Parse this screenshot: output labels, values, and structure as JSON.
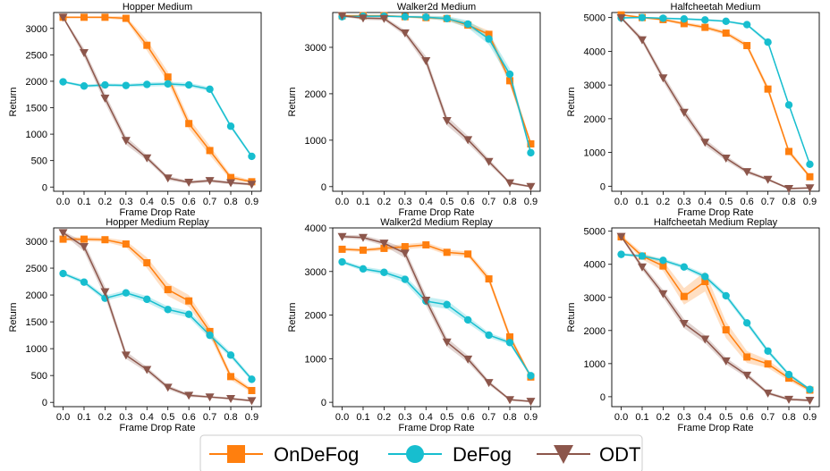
{
  "legend": {
    "entries": [
      {
        "name": "OnDeFog",
        "color": "#ff7f0e",
        "marker": "square"
      },
      {
        "name": "DeFog",
        "color": "#17becf",
        "marker": "circle"
      },
      {
        "name": "ODT",
        "color": "#8c564b",
        "marker": "triangle-down"
      }
    ]
  },
  "chart_data": [
    {
      "type": "line",
      "title": "Hopper Medium",
      "xlabel": "Frame Drop Rate",
      "ylabel": "Return",
      "x": [
        0.0,
        0.1,
        0.2,
        0.3,
        0.4,
        0.5,
        0.6,
        0.7,
        0.8,
        0.9
      ],
      "x_ticks": [
        "0.0",
        "0.1",
        "0.2",
        "0.3",
        "0.4",
        "0.5",
        "0.6",
        "0.7",
        "0.8",
        "0.9"
      ],
      "ylim": [
        -80,
        3300
      ],
      "y_ticks": [
        0,
        500,
        1000,
        1500,
        2000,
        2500,
        3000
      ],
      "series": [
        {
          "name": "OnDeFog",
          "values": [
            3210,
            3210,
            3210,
            3190,
            2680,
            2080,
            1200,
            690,
            180,
            100
          ],
          "band": [
            20,
            20,
            20,
            40,
            100,
            100,
            100,
            90,
            50,
            30
          ]
        },
        {
          "name": "DeFog",
          "values": [
            1990,
            1910,
            1930,
            1920,
            1940,
            1950,
            1930,
            1850,
            1150,
            580
          ],
          "band": [
            20,
            30,
            30,
            30,
            40,
            40,
            40,
            40,
            40,
            30
          ]
        },
        {
          "name": "ODT",
          "values": [
            3210,
            2540,
            1680,
            880,
            550,
            170,
            90,
            120,
            80,
            50
          ],
          "band": [
            20,
            80,
            90,
            80,
            50,
            40,
            30,
            30,
            30,
            20
          ]
        }
      ]
    },
    {
      "type": "line",
      "title": "Walker2d Medium",
      "xlabel": "Frame Drop Rate",
      "ylabel": "Return",
      "x": [
        0.0,
        0.1,
        0.2,
        0.3,
        0.4,
        0.5,
        0.6,
        0.7,
        0.8,
        0.9
      ],
      "x_ticks": [
        "0.0",
        "0.1",
        "0.2",
        "0.3",
        "0.4",
        "0.5",
        "0.6",
        "0.7",
        "0.8",
        "0.9"
      ],
      "ylim": [
        -100,
        3750
      ],
      "y_ticks": [
        0,
        1000,
        2000,
        3000
      ],
      "series": [
        {
          "name": "OnDeFog",
          "values": [
            3680,
            3680,
            3680,
            3660,
            3640,
            3620,
            3480,
            3280,
            2280,
            920
          ],
          "band": [
            20,
            20,
            20,
            20,
            30,
            40,
            60,
            80,
            100,
            60
          ]
        },
        {
          "name": "DeFog",
          "values": [
            3660,
            3670,
            3670,
            3660,
            3650,
            3620,
            3500,
            3180,
            2420,
            730
          ],
          "band": [
            20,
            20,
            20,
            20,
            30,
            50,
            80,
            120,
            120,
            60
          ]
        },
        {
          "name": "ODT",
          "values": [
            3680,
            3630,
            3620,
            3310,
            2710,
            1420,
            1010,
            540,
            80,
            0
          ],
          "band": [
            20,
            40,
            40,
            60,
            100,
            100,
            80,
            60,
            30,
            20
          ]
        }
      ]
    },
    {
      "type": "line",
      "title": "Halfcheetah Medium",
      "xlabel": "Frame Drop Rate",
      "ylabel": "Return",
      "x": [
        0.0,
        0.1,
        0.2,
        0.3,
        0.4,
        0.5,
        0.6,
        0.7,
        0.8,
        0.9
      ],
      "x_ticks": [
        "0.0",
        "0.1",
        "0.2",
        "0.3",
        "0.4",
        "0.5",
        "0.6",
        "0.7",
        "0.8",
        "0.9"
      ],
      "ylim": [
        -150,
        5150
      ],
      "y_ticks": [
        0,
        1000,
        2000,
        3000,
        4000,
        5000
      ],
      "series": [
        {
          "name": "OnDeFog",
          "values": [
            5080,
            5000,
            4940,
            4820,
            4710,
            4540,
            4170,
            2880,
            1030,
            280
          ],
          "band": [
            30,
            30,
            40,
            50,
            60,
            60,
            80,
            100,
            80,
            50
          ]
        },
        {
          "name": "DeFog",
          "values": [
            4990,
            5000,
            4980,
            4960,
            4930,
            4890,
            4790,
            4270,
            2410,
            650
          ],
          "band": [
            20,
            20,
            20,
            30,
            30,
            30,
            40,
            60,
            60,
            40
          ]
        },
        {
          "name": "ODT",
          "values": [
            4990,
            4340,
            3210,
            2190,
            1300,
            830,
            430,
            200,
            -70,
            -50
          ],
          "band": [
            40,
            80,
            110,
            120,
            100,
            80,
            60,
            40,
            30,
            30
          ]
        }
      ]
    },
    {
      "type": "line",
      "title": "Hopper Medium Replay",
      "xlabel": "Frame Drop Rate",
      "ylabel": "Return",
      "x": [
        0.0,
        0.1,
        0.2,
        0.3,
        0.4,
        0.5,
        0.6,
        0.7,
        0.8,
        0.9
      ],
      "x_ticks": [
        "0.0",
        "0.1",
        "0.2",
        "0.3",
        "0.4",
        "0.5",
        "0.6",
        "0.7",
        "0.8",
        "0.9"
      ],
      "ylim": [
        -80,
        3250
      ],
      "y_ticks": [
        0,
        500,
        1000,
        1500,
        2000,
        2500,
        3000
      ],
      "series": [
        {
          "name": "OnDeFog",
          "values": [
            3040,
            3040,
            3030,
            2950,
            2600,
            2100,
            1890,
            1320,
            480,
            220
          ],
          "band": [
            30,
            40,
            40,
            60,
            100,
            120,
            110,
            90,
            60,
            40
          ]
        },
        {
          "name": "DeFog",
          "values": [
            2400,
            2240,
            1940,
            2040,
            1920,
            1730,
            1640,
            1250,
            880,
            430
          ],
          "band": [
            30,
            40,
            50,
            50,
            60,
            60,
            60,
            60,
            50,
            40
          ]
        },
        {
          "name": "ODT",
          "values": [
            3160,
            2900,
            2060,
            880,
            610,
            280,
            130,
            100,
            70,
            30
          ],
          "band": [
            30,
            90,
            100,
            70,
            50,
            40,
            30,
            20,
            20,
            20
          ]
        }
      ]
    },
    {
      "type": "line",
      "title": "Walker2d Medium Replay",
      "xlabel": "Frame Drop Rate",
      "ylabel": "Return",
      "x": [
        0.0,
        0.1,
        0.2,
        0.3,
        0.4,
        0.5,
        0.6,
        0.7,
        0.8,
        0.9
      ],
      "x_ticks": [
        "0.0",
        "0.1",
        "0.2",
        "0.3",
        "0.4",
        "0.5",
        "0.6",
        "0.7",
        "0.8",
        "0.9"
      ],
      "ylim": [
        -100,
        4000
      ],
      "y_ticks": [
        0,
        1000,
        2000,
        3000,
        4000
      ],
      "series": [
        {
          "name": "OnDeFog",
          "values": [
            3510,
            3490,
            3530,
            3570,
            3610,
            3440,
            3400,
            2830,
            1500,
            580
          ],
          "band": [
            40,
            40,
            50,
            60,
            60,
            60,
            60,
            80,
            80,
            50
          ]
        },
        {
          "name": "DeFog",
          "values": [
            3220,
            3060,
            2980,
            2820,
            2320,
            2240,
            1890,
            1540,
            1370,
            610
          ],
          "band": [
            40,
            50,
            60,
            80,
            100,
            100,
            80,
            60,
            50,
            40
          ]
        },
        {
          "name": "ODT",
          "values": [
            3800,
            3780,
            3650,
            3420,
            2340,
            1380,
            990,
            450,
            60,
            20
          ],
          "band": [
            40,
            50,
            60,
            110,
            120,
            100,
            80,
            50,
            30,
            20
          ]
        }
      ]
    },
    {
      "type": "line",
      "title": "Halfcheetah Medium Replay",
      "xlabel": "Frame Drop Rate",
      "ylabel": "Return",
      "x": [
        0.0,
        0.1,
        0.2,
        0.3,
        0.4,
        0.5,
        0.6,
        0.7,
        0.8,
        0.9
      ],
      "x_ticks": [
        "0.0",
        "0.1",
        "0.2",
        "0.3",
        "0.4",
        "0.5",
        "0.6",
        "0.7",
        "0.8",
        "0.9"
      ],
      "ylim": [
        -300,
        5100
      ],
      "y_ticks": [
        0,
        1000,
        2000,
        3000,
        4000,
        5000
      ],
      "series": [
        {
          "name": "OnDeFog",
          "values": [
            4830,
            4250,
            3950,
            3030,
            3480,
            2020,
            1200,
            990,
            560,
            200
          ],
          "band": [
            60,
            100,
            150,
            250,
            300,
            250,
            180,
            120,
            80,
            60
          ]
        },
        {
          "name": "DeFog",
          "values": [
            4300,
            4250,
            4120,
            3920,
            3630,
            3050,
            2230,
            1380,
            670,
            220
          ],
          "band": [
            40,
            50,
            60,
            60,
            80,
            80,
            80,
            70,
            60,
            40
          ]
        },
        {
          "name": "ODT",
          "values": [
            4840,
            3920,
            3110,
            2210,
            1740,
            1080,
            650,
            110,
            -80,
            -110
          ],
          "band": [
            40,
            90,
            120,
            140,
            120,
            100,
            80,
            50,
            40,
            40
          ]
        }
      ]
    }
  ]
}
